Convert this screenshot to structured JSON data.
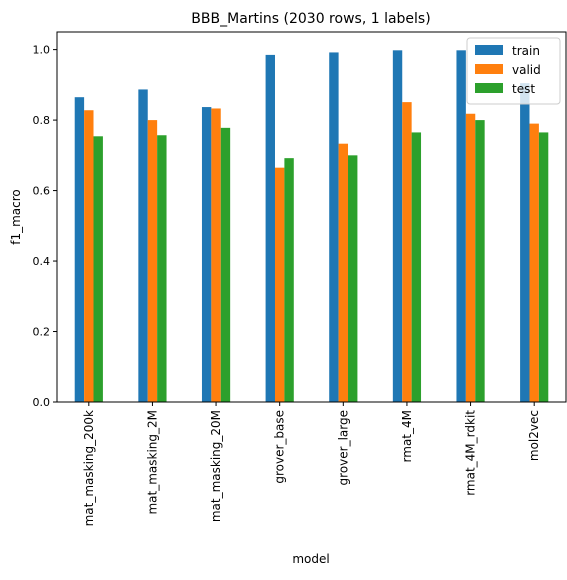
{
  "chart_data": {
    "type": "bar",
    "title": "BBB_Martins (2030 rows, 1 labels)",
    "xlabel": "model",
    "ylabel": "f1_macro",
    "ylim": [
      0,
      1.05
    ],
    "yticks": [
      "0.0",
      "0.2",
      "0.4",
      "0.6",
      "0.8",
      "1.0"
    ],
    "categories": [
      "mat_masking_200k",
      "mat_masking_2M",
      "mat_masking_20M",
      "grover_base",
      "grover_large",
      "rmat_4M",
      "rmat_4M_rdkit",
      "mol2vec"
    ],
    "series": [
      {
        "name": "train",
        "color": "#1f77b4",
        "values": [
          0.865,
          0.887,
          0.837,
          0.985,
          0.992,
          0.998,
          0.998,
          0.905
        ]
      },
      {
        "name": "valid",
        "color": "#ff7f0e",
        "values": [
          0.828,
          0.8,
          0.833,
          0.665,
          0.733,
          0.851,
          0.818,
          0.79
        ]
      },
      {
        "name": "test",
        "color": "#2ca02c",
        "values": [
          0.754,
          0.757,
          0.778,
          0.692,
          0.7,
          0.765,
          0.8,
          0.765
        ]
      }
    ],
    "grid": false,
    "legend_position": "top-right"
  }
}
